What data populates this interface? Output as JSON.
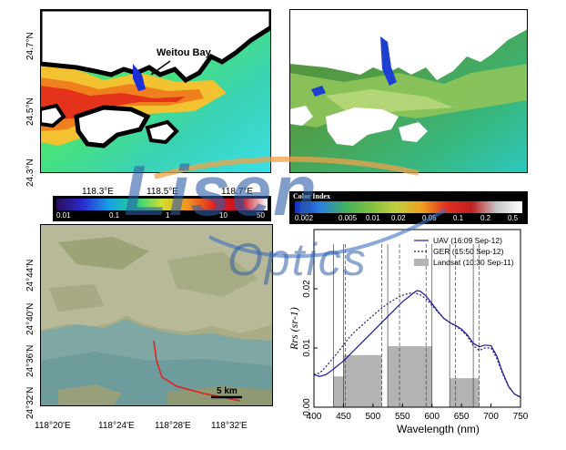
{
  "map_top_left": {
    "callout": "Weitou Bay",
    "lat_ticks": [
      "24.7°N",
      "24.5°N",
      "24.3°N"
    ],
    "lon_ticks": [
      "118.3°E",
      "118.5°E",
      "118.7°E"
    ]
  },
  "colorbar_left": {
    "ticks": [
      "0.01",
      "0.1",
      "1",
      "10",
      "50"
    ]
  },
  "colorbar_right": {
    "title": "Color Index",
    "ticks": [
      "0.002",
      "0.005",
      "0.01",
      "0.02",
      "0.05",
      "0.1",
      "0.2",
      "0.5"
    ]
  },
  "satellite": {
    "lat_ticks": [
      "24°44'N",
      "24°40'N",
      "24°36'N",
      "24°32'N"
    ],
    "lon_ticks": [
      "118°20'E",
      "118°24'E",
      "118°28'E",
      "118°32'E"
    ],
    "scale_label": "5 km"
  },
  "watermark": {
    "brand": "Lisen",
    "sub": "Optics"
  },
  "chart_data": {
    "type": "line",
    "xlabel": "Wavelength (nm)",
    "ylabel": "Rrs (sr-1)",
    "xlim": [
      400,
      750
    ],
    "ylim": [
      0,
      0.03
    ],
    "x_ticks": [
      "400",
      "450",
      "500",
      "550",
      "600",
      "650",
      "700",
      "750"
    ],
    "y_ticks": [
      "0.00",
      "0.01",
      "0.02"
    ],
    "legend_position": "top-right",
    "series": [
      {
        "name": "UAV (16:09 Sep-12)",
        "style": "solid",
        "color": "#1a1a9c",
        "x": [
          400,
          410,
          420,
          430,
          440,
          450,
          460,
          470,
          480,
          490,
          500,
          510,
          520,
          530,
          540,
          550,
          560,
          570,
          575,
          580,
          590,
          600,
          610,
          620,
          630,
          640,
          650,
          660,
          670,
          680,
          690,
          700,
          710,
          720,
          730,
          740,
          750
        ],
        "y": [
          0.0055,
          0.0052,
          0.0055,
          0.0062,
          0.007,
          0.0078,
          0.0088,
          0.0098,
          0.0108,
          0.0118,
          0.0128,
          0.0138,
          0.0148,
          0.0158,
          0.0168,
          0.0178,
          0.0186,
          0.0194,
          0.0197,
          0.0196,
          0.0188,
          0.0175,
          0.0162,
          0.015,
          0.0143,
          0.0138,
          0.0132,
          0.0122,
          0.0108,
          0.0102,
          0.0105,
          0.0104,
          0.0086,
          0.0058,
          0.0035,
          0.0022,
          0.0017
        ]
      },
      {
        "name": "GER (15:50 Sep-12)",
        "style": "dotted",
        "color": "#1a1a7a",
        "x": [
          400,
          410,
          420,
          430,
          440,
          450,
          460,
          470,
          480,
          490,
          500,
          510,
          520,
          530,
          540,
          550,
          560,
          570,
          580,
          590,
          600,
          610,
          620,
          630,
          640,
          650,
          660,
          670,
          680,
          690,
          700,
          710,
          720,
          730,
          740,
          750
        ],
        "y": [
          0.0055,
          0.0058,
          0.0068,
          0.008,
          0.0092,
          0.0105,
          0.0118,
          0.0128,
          0.0137,
          0.0146,
          0.0155,
          0.0163,
          0.0171,
          0.0178,
          0.0184,
          0.0189,
          0.0192,
          0.0193,
          0.019,
          0.0183,
          0.0172,
          0.0161,
          0.015,
          0.0143,
          0.0137,
          0.013,
          0.012,
          0.0104,
          0.0096,
          0.01,
          0.01,
          0.0082,
          0.0056,
          0.0034,
          0.0022,
          0.0016
        ]
      },
      {
        "name": "Landsat (10:30 Sep-11)",
        "style": "bar",
        "color": "#b3b3b3",
        "bands": [
          [
            433,
            453,
            0.0052
          ],
          [
            450,
            515,
            0.0088
          ],
          [
            525,
            600,
            0.0103
          ],
          [
            630,
            680,
            0.0049
          ]
        ]
      }
    ],
    "band_lines_solid": [
      433,
      450,
      525,
      600,
      630,
      670
    ],
    "band_lines_dashed": [
      453,
      515,
      545,
      590,
      640,
      680
    ]
  }
}
